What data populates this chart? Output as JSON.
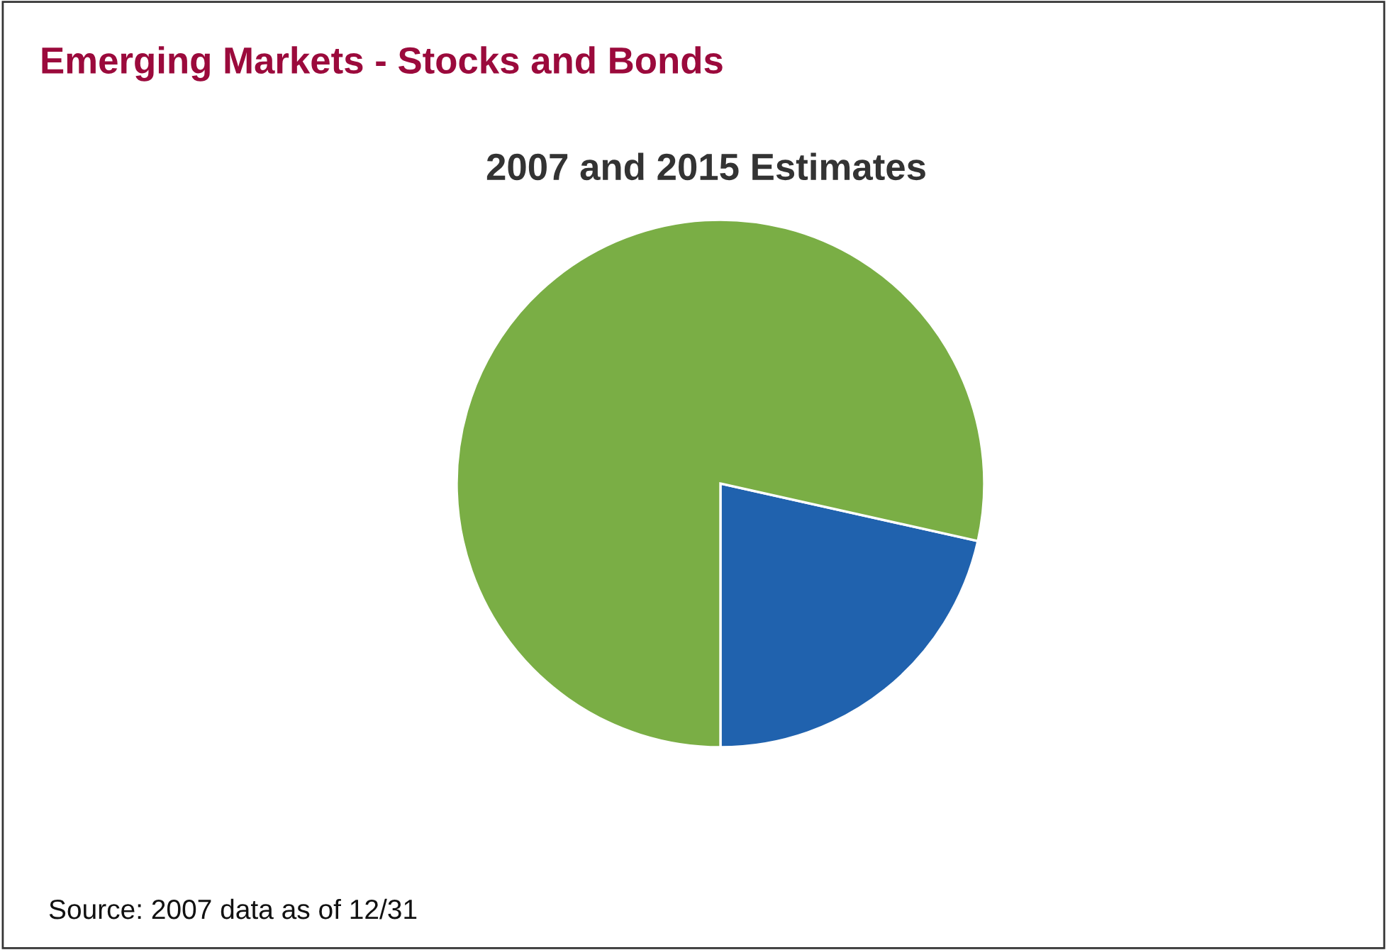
{
  "chart_data": {
    "type": "pie",
    "title": "Emerging Markets - Stocks and Bonds",
    "subtitle": "2007 and 2015 Estimates",
    "categories": [
      null,
      null
    ],
    "values": [
      21.5,
      78.5
    ],
    "colors": [
      "#2062ae",
      "#7aae45"
    ],
    "annotations": [
      "Source: 2007 data as of 12/31"
    ],
    "legend": false
  }
}
